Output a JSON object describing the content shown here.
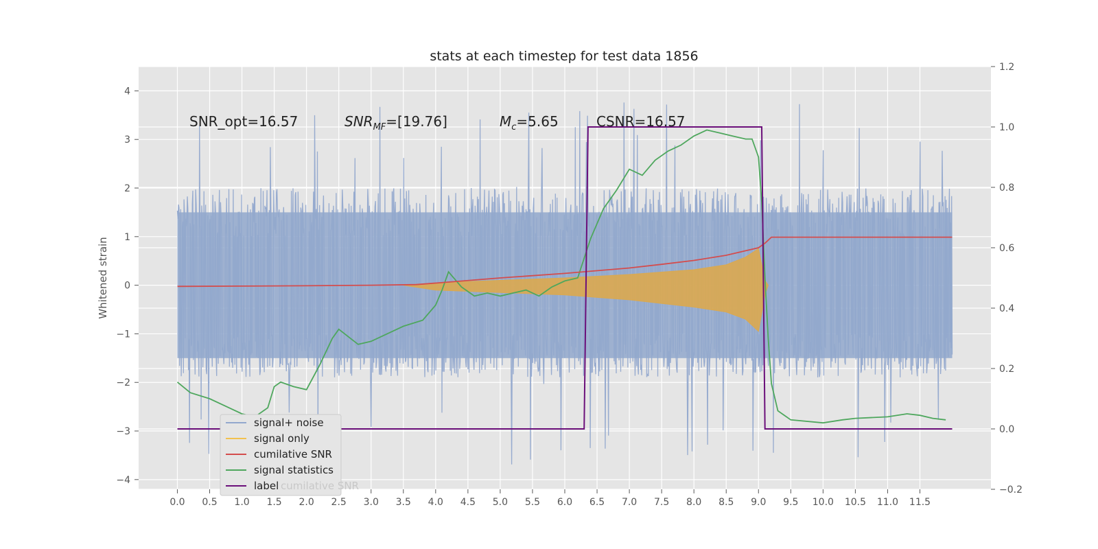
{
  "chart_data": {
    "type": "line",
    "title": "stats at each timestep for test data 1856",
    "ylabel": "Whitened strain",
    "xlim": [
      -0.6,
      12.6
    ],
    "ylim": [
      -4.2,
      4.5
    ],
    "y2lim": [
      -0.2,
      1.2
    ],
    "grid": true,
    "x_ticks": [
      "0.0",
      "0.5",
      "1.0",
      "1.5",
      "2.0",
      "2.5",
      "3.0",
      "3.5",
      "4.0",
      "4.5",
      "5.0",
      "5.5",
      "6.0",
      "6.5",
      "7.0",
      "7.5",
      "8.0",
      "8.5",
      "9.0",
      "9.5",
      "10.0",
      "10.5",
      "11.0",
      "11.5"
    ],
    "y_ticks": [
      "4",
      "3",
      "2",
      "1",
      "0",
      "−1",
      "−2",
      "−3",
      "−4"
    ],
    "y2_ticks": [
      "1.2",
      "1.0",
      "0.8",
      "0.6",
      "0.4",
      "0.2",
      "0.0",
      "−0.2"
    ],
    "annotations": {
      "snr_opt": "SNR_opt=16.57",
      "snr_mf_main": "SNR",
      "snr_mf_sub": "MF",
      "snr_mf_rest": "=[19.76]",
      "mc_main": "M",
      "mc_sub": "c",
      "mc_rest": "=5.65",
      "csnr": "CSNR=16.57"
    },
    "legend": {
      "location": "lower left",
      "entries": [
        "signal+ noise",
        "signal only",
        "cumilative SNR",
        "signal statistics",
        "label"
      ],
      "ghost_text": "cumilative SNR"
    },
    "colors": {
      "background": "#e5e5e5",
      "grid": "#ffffff",
      "noise": "#92a8cd",
      "signal": "#dba94f",
      "cumsnr": "#d44c4c",
      "stat": "#4ea75d",
      "label": "#6b0f7a"
    },
    "series": [
      {
        "name": "signal+ noise",
        "axis": "left",
        "t_start": 0.0,
        "t_end": 12.0,
        "typical_min": -1.8,
        "typical_max": 2.0,
        "extreme_min": -3.75,
        "extreme_max": 4.1
      },
      {
        "name": "signal only",
        "axis": "left",
        "t_start": 3.5,
        "t_end": 9.1,
        "envelope_x": [
          3.5,
          4.0,
          5.0,
          6.0,
          7.0,
          8.0,
          8.5,
          8.8,
          9.0,
          9.1,
          9.15
        ],
        "envelope_upper": [
          0.0,
          0.05,
          0.1,
          0.15,
          0.22,
          0.32,
          0.42,
          0.58,
          0.75,
          0.1,
          0.0
        ],
        "envelope_lower": [
          0.0,
          -0.1,
          -0.15,
          -0.2,
          -0.3,
          -0.45,
          -0.55,
          -0.7,
          -0.95,
          -0.2,
          0.0
        ]
      },
      {
        "name": "cumilative SNR",
        "axis": "right",
        "x": [
          0.0,
          1.0,
          2.0,
          3.0,
          3.7,
          4.0,
          5.0,
          6.0,
          7.0,
          7.5,
          8.0,
          8.5,
          8.8,
          9.0,
          9.1,
          9.2,
          12.0
        ],
        "y": [
          0.472,
          0.473,
          0.474,
          0.476,
          0.478,
          0.483,
          0.5,
          0.515,
          0.533,
          0.545,
          0.558,
          0.575,
          0.59,
          0.6,
          0.615,
          0.635,
          0.635
        ]
      },
      {
        "name": "signal statistics",
        "axis": "right",
        "x": [
          0.0,
          0.2,
          0.5,
          0.8,
          1.0,
          1.2,
          1.4,
          1.5,
          1.6,
          1.8,
          2.0,
          2.2,
          2.4,
          2.5,
          2.8,
          3.0,
          3.3,
          3.5,
          3.8,
          4.0,
          4.1,
          4.2,
          4.4,
          4.6,
          4.8,
          5.0,
          5.2,
          5.4,
          5.6,
          5.8,
          6.0,
          6.2,
          6.4,
          6.6,
          6.8,
          7.0,
          7.2,
          7.4,
          7.6,
          7.8,
          8.0,
          8.2,
          8.4,
          8.6,
          8.8,
          8.9,
          9.0,
          9.05,
          9.1,
          9.15,
          9.2,
          9.3,
          9.5,
          10.0,
          10.3,
          10.5,
          11.0,
          11.3,
          11.5,
          11.7,
          11.9
        ],
        "y": [
          0.155,
          0.12,
          0.1,
          0.07,
          0.05,
          0.04,
          0.07,
          0.14,
          0.155,
          0.14,
          0.13,
          0.21,
          0.3,
          0.33,
          0.28,
          0.29,
          0.32,
          0.34,
          0.36,
          0.41,
          0.46,
          0.52,
          0.47,
          0.44,
          0.45,
          0.44,
          0.45,
          0.46,
          0.44,
          0.47,
          0.49,
          0.5,
          0.63,
          0.73,
          0.79,
          0.86,
          0.84,
          0.89,
          0.92,
          0.94,
          0.97,
          0.99,
          0.98,
          0.97,
          0.96,
          0.96,
          0.9,
          0.75,
          0.5,
          0.3,
          0.15,
          0.06,
          0.03,
          0.02,
          0.03,
          0.035,
          0.04,
          0.05,
          0.045,
          0.035,
          0.03
        ]
      },
      {
        "name": "label",
        "axis": "right",
        "x": [
          0.0,
          6.3,
          6.36,
          9.05,
          9.1,
          12.0
        ],
        "y": [
          0.0,
          0.0,
          1.0,
          1.0,
          0.0,
          0.0
        ]
      }
    ]
  }
}
